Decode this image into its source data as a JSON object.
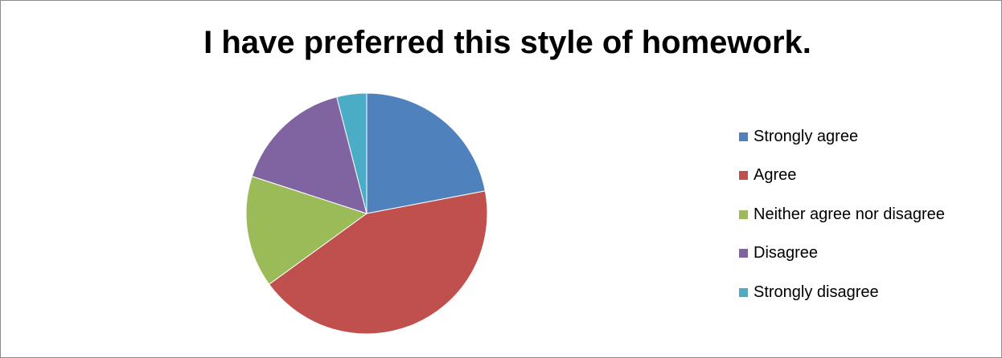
{
  "chart_data": {
    "type": "pie",
    "title": "I have preferred this style of homework.",
    "categories": [
      "Strongly agree",
      "Agree",
      "Neither agree nor disagree",
      "Disagree",
      "Strongly disagree"
    ],
    "values": [
      22,
      43,
      15,
      16,
      4
    ],
    "value_unit": "percent of responses (estimated)",
    "colors": [
      "#4f81bd",
      "#c0504d",
      "#9bbb59",
      "#8064a2",
      "#4bacc6"
    ],
    "start_angle_deg": 0,
    "direction": "clockwise",
    "legend_position": "right"
  }
}
